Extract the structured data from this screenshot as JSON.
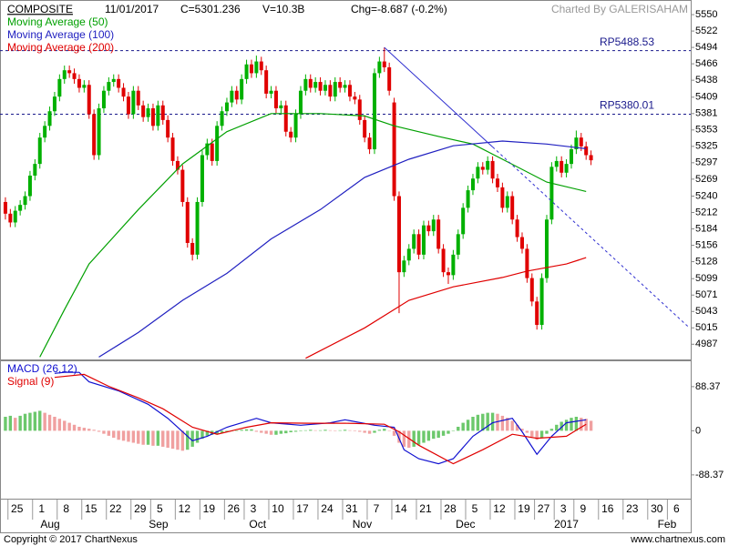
{
  "header": {
    "symbol": "COMPOSITE",
    "date": "11/01/2017",
    "close": "C=5301.236",
    "volume": "V=10.3B",
    "change": "Chg=-8.687 (-0.2%)",
    "credit": "Charted By GALERISAHAM"
  },
  "chart_data": [
    {
      "type": "candlestick",
      "up_color": "#00b000",
      "down_color": "#e00000",
      "open": [
        5230,
        5210,
        5195,
        5215,
        5225,
        5240,
        5275,
        5295,
        5340,
        5360,
        5385,
        5410,
        5440,
        5455,
        5450,
        5440,
        5425,
        5430,
        5380,
        5310,
        5390,
        5420,
        5435,
        5440,
        5425,
        5410,
        5380,
        5420,
        5395,
        5375,
        5390,
        5360,
        5395,
        5370,
        5340,
        5300,
        5285,
        5230,
        5160,
        5140,
        5230,
        5310,
        5330,
        5300,
        5360,
        5385,
        5400,
        5420,
        5405,
        5440,
        5465,
        5450,
        5470,
        5455,
        5415,
        5420,
        5390,
        5395,
        5350,
        5340,
        5380,
        5420,
        5440,
        5425,
        5435,
        5420,
        5430,
        5410,
        5435,
        5425,
        5430,
        5410,
        5405,
        5370,
        5340,
        5320,
        5450,
        5470,
        5460,
        5400,
        5240,
        5110,
        5130,
        5150,
        5175,
        5140,
        5190,
        5180,
        5200,
        5150,
        5110,
        5105,
        5140,
        5175,
        5220,
        5250,
        5270,
        5290,
        5285,
        5300,
        5270,
        5255,
        5220,
        5240,
        5200,
        5170,
        5150,
        5100,
        5060,
        5020,
        5100,
        5200,
        5290,
        5300,
        5280,
        5295,
        5320,
        5340,
        5325,
        5310
      ],
      "high": [
        5238,
        5218,
        5223,
        5233,
        5248,
        5283,
        5303,
        5348,
        5368,
        5393,
        5418,
        5448,
        5463,
        5463,
        5458,
        5448,
        5438,
        5438,
        5388,
        5398,
        5428,
        5443,
        5448,
        5448,
        5433,
        5418,
        5428,
        5428,
        5403,
        5398,
        5398,
        5403,
        5403,
        5378,
        5348,
        5308,
        5293,
        5238,
        5168,
        5238,
        5318,
        5338,
        5338,
        5368,
        5393,
        5408,
        5428,
        5428,
        5448,
        5473,
        5473,
        5480,
        5478,
        5463,
        5428,
        5428,
        5403,
        5403,
        5358,
        5388,
        5428,
        5448,
        5448,
        5443,
        5443,
        5438,
        5438,
        5443,
        5443,
        5438,
        5438,
        5418,
        5413,
        5378,
        5348,
        5458,
        5478,
        5494,
        5468,
        5408,
        5248,
        5138,
        5158,
        5183,
        5183,
        5198,
        5198,
        5208,
        5208,
        5158,
        5118,
        5148,
        5183,
        5228,
        5258,
        5278,
        5298,
        5298,
        5308,
        5308,
        5278,
        5263,
        5248,
        5248,
        5208,
        5178,
        5158,
        5108,
        5068,
        5108,
        5208,
        5298,
        5308,
        5308,
        5303,
        5328,
        5352,
        5348,
        5333,
        5318
      ],
      "low": [
        5200,
        5187,
        5187,
        5207,
        5217,
        5232,
        5267,
        5287,
        5332,
        5352,
        5377,
        5402,
        5432,
        5442,
        5432,
        5417,
        5417,
        5372,
        5302,
        5302,
        5382,
        5412,
        5427,
        5417,
        5402,
        5372,
        5372,
        5387,
        5367,
        5367,
        5352,
        5352,
        5362,
        5332,
        5292,
        5277,
        5222,
        5152,
        5130,
        5132,
        5222,
        5302,
        5292,
        5292,
        5352,
        5377,
        5392,
        5397,
        5397,
        5432,
        5442,
        5442,
        5447,
        5407,
        5407,
        5382,
        5382,
        5342,
        5332,
        5332,
        5372,
        5412,
        5417,
        5417,
        5412,
        5412,
        5402,
        5402,
        5417,
        5417,
        5402,
        5397,
        5362,
        5332,
        5312,
        5312,
        5442,
        5452,
        5412,
        5232,
        5040,
        5102,
        5122,
        5142,
        5132,
        5132,
        5172,
        5172,
        5142,
        5102,
        5090,
        5097,
        5132,
        5167,
        5212,
        5242,
        5262,
        5277,
        5277,
        5262,
        5247,
        5212,
        5212,
        5192,
        5162,
        5142,
        5092,
        5052,
        5012,
        5012,
        5092,
        5192,
        5282,
        5272,
        5272,
        5287,
        5312,
        5317,
        5302,
        5293
      ],
      "close": [
        5210,
        5195,
        5215,
        5225,
        5240,
        5275,
        5295,
        5340,
        5360,
        5385,
        5410,
        5440,
        5455,
        5450,
        5440,
        5425,
        5430,
        5380,
        5310,
        5390,
        5420,
        5435,
        5440,
        5425,
        5410,
        5380,
        5420,
        5395,
        5375,
        5390,
        5360,
        5395,
        5370,
        5340,
        5300,
        5285,
        5230,
        5160,
        5140,
        5230,
        5310,
        5330,
        5300,
        5360,
        5385,
        5400,
        5420,
        5405,
        5440,
        5465,
        5450,
        5470,
        5455,
        5415,
        5420,
        5390,
        5395,
        5350,
        5340,
        5380,
        5420,
        5440,
        5425,
        5435,
        5420,
        5430,
        5410,
        5435,
        5425,
        5430,
        5410,
        5405,
        5370,
        5340,
        5320,
        5450,
        5470,
        5460,
        5420,
        5240,
        5110,
        5130,
        5150,
        5175,
        5140,
        5190,
        5180,
        5200,
        5150,
        5110,
        5105,
        5140,
        5175,
        5220,
        5250,
        5270,
        5290,
        5285,
        5300,
        5270,
        5255,
        5220,
        5240,
        5200,
        5170,
        5150,
        5100,
        5060,
        5020,
        5100,
        5200,
        5290,
        5300,
        5280,
        5295,
        5320,
        5340,
        5325,
        5310,
        5301.236
      ],
      "series": [
        {
          "name": "Moving Average (50)",
          "color": "#00a000",
          "x": [
            7,
            12,
            17,
            27,
            36,
            45,
            54,
            64,
            73,
            79,
            88,
            95,
            101,
            110,
            118
          ],
          "values": [
            4965,
            5046,
            5124,
            5217,
            5295,
            5350,
            5381,
            5381,
            5377,
            5360,
            5342,
            5329,
            5303,
            5264,
            5248
          ]
        },
        {
          "name": "Moving Average (100)",
          "color": "#2020c0",
          "x": [
            19,
            27,
            36,
            45,
            54,
            64,
            73,
            82,
            91,
            101,
            110,
            118
          ],
          "values": [
            4965,
            5007,
            5062,
            5108,
            5167,
            5217,
            5272,
            5303,
            5326,
            5334,
            5329,
            5321
          ]
        },
        {
          "name": "Moving Average (200)",
          "color": "#e00000",
          "x": [
            61,
            73,
            82,
            91,
            101,
            106,
            114,
            118
          ],
          "values": [
            4963,
            5015,
            5062,
            5085,
            5101,
            5112,
            5124,
            5135
          ]
        }
      ],
      "annotations": [
        {
          "value": 5488.53,
          "label": "RP5488.53"
        },
        {
          "value": 5380.01,
          "label": "RP5380.01"
        }
      ],
      "trend_line": {
        "color": "#3030d0",
        "x": [
          77,
          99,
          139
        ],
        "values": [
          5494,
          5324,
          5015
        ]
      },
      "xlim": [
        -1.1,
        139.26
      ],
      "ylim": [
        4961,
        5575
      ],
      "yticks": [
        5550,
        5522,
        5494,
        5466,
        5438,
        5409,
        5381,
        5353,
        5325,
        5297,
        5269,
        5240,
        5212,
        5184,
        5156,
        5128,
        5099,
        5071,
        5043,
        5015,
        4987
      ]
    },
    {
      "type": "macd",
      "series": [
        {
          "name": "MACD (26,12)",
          "color": "#1010d0",
          "x": [
            10,
            12,
            15,
            17,
            23,
            29,
            33,
            38,
            41,
            45,
            51,
            54,
            60,
            66,
            69,
            75,
            79,
            81,
            84,
            88,
            91,
            95,
            99,
            103,
            105,
            108,
            111,
            114,
            118
          ],
          "values": [
            115,
            117,
            117,
            98,
            80,
            53,
            25,
            -20,
            -11,
            7,
            25,
            16,
            11,
            16,
            22,
            11,
            7,
            -38,
            -56,
            -66,
            -56,
            -11,
            16,
            25,
            -2,
            -47,
            -11,
            16,
            22
          ]
        },
        {
          "name": "Signal (9)",
          "color": "#e00000",
          "x": [
            10,
            16,
            21,
            27,
            32,
            38,
            43,
            49,
            54,
            62,
            69,
            77,
            80,
            84,
            91,
            97,
            103,
            108,
            114,
            118
          ],
          "values": [
            107,
            113,
            89,
            66,
            44,
            7,
            -7,
            7,
            16,
            15,
            15,
            13,
            -2,
            -29,
            -66,
            -38,
            -7,
            -15,
            -11,
            13
          ]
        }
      ],
      "histogram": {
        "up_color": "#6cc86c",
        "down_color": "#f0a0a0",
        "values": [
          28,
          30,
          26,
          30,
          34,
          36,
          38,
          40,
          36,
          32,
          28,
          24,
          20,
          16,
          12,
          8,
          6,
          4,
          2,
          -2,
          -6,
          -10,
          -14,
          -18,
          -20,
          -22,
          -24,
          -26,
          -28,
          -28,
          -30,
          -30,
          -32,
          -34,
          -36,
          -38,
          -40,
          -38,
          -32,
          -24,
          -16,
          -10,
          -8,
          -6,
          -4,
          -2,
          -1,
          0,
          2,
          3,
          3,
          -2,
          -4,
          -6,
          -8,
          -8,
          -6,
          -5,
          -3,
          -2,
          -1,
          1,
          2,
          1,
          1,
          2,
          1,
          0,
          1,
          2,
          1,
          -1,
          -2,
          -4,
          -6,
          -4,
          2,
          4,
          0,
          -10,
          -24,
          -32,
          -34,
          -32,
          -28,
          -24,
          -20,
          -16,
          -14,
          -10,
          -6,
          0,
          8,
          16,
          22,
          28,
          32,
          34,
          36,
          36,
          34,
          30,
          26,
          20,
          12,
          4,
          -4,
          -12,
          -18,
          -14,
          -6,
          4,
          12,
          18,
          22,
          26,
          28,
          26,
          24,
          20
        ]
      },
      "xlim": [
        -1.1,
        139.26
      ],
      "ylim": [
        -136,
        141
      ],
      "yticks": [
        88.37,
        0,
        -88.37
      ],
      "xticks": [
        {
          "value": 2,
          "label": "25"
        },
        {
          "value": 7,
          "label": "1"
        },
        {
          "value": 12,
          "label": "8"
        },
        {
          "value": 17,
          "label": "15"
        },
        {
          "value": 22,
          "label": "22"
        },
        {
          "value": 27,
          "label": "29"
        },
        {
          "value": 31,
          "label": "5"
        },
        {
          "value": 36,
          "label": "12"
        },
        {
          "value": 41,
          "label": "19"
        },
        {
          "value": 46,
          "label": "26"
        },
        {
          "value": 50,
          "label": "3"
        },
        {
          "value": 55,
          "label": "10"
        },
        {
          "value": 60,
          "label": "17"
        },
        {
          "value": 65,
          "label": "24"
        },
        {
          "value": 70,
          "label": "31"
        },
        {
          "value": 75,
          "label": "7"
        },
        {
          "value": 80,
          "label": "14"
        },
        {
          "value": 85,
          "label": "21"
        },
        {
          "value": 90,
          "label": "28"
        },
        {
          "value": 95,
          "label": "5"
        },
        {
          "value": 100,
          "label": "12"
        },
        {
          "value": 105,
          "label": "19"
        },
        {
          "value": 109,
          "label": "27"
        },
        {
          "value": 113,
          "label": "3"
        },
        {
          "value": 117,
          "label": "9"
        },
        {
          "value": 122,
          "label": "16"
        },
        {
          "value": 127,
          "label": "23"
        },
        {
          "value": 132,
          "label": "30"
        },
        {
          "value": 136,
          "label": "6"
        }
      ],
      "month_labels": [
        {
          "value": 8.6,
          "label": "Aug"
        },
        {
          "value": 30.6,
          "label": "Sep"
        },
        {
          "value": 51,
          "label": "Oct"
        },
        {
          "value": 72,
          "label": "Nov"
        },
        {
          "value": 93,
          "label": "Dec"
        },
        {
          "value": 113,
          "label": "2017"
        },
        {
          "value": 134,
          "label": "Feb"
        }
      ]
    }
  ],
  "footer": {
    "copyright": "Copyright © 2017 ChartNexus",
    "site": "www.chartnexus.com"
  }
}
